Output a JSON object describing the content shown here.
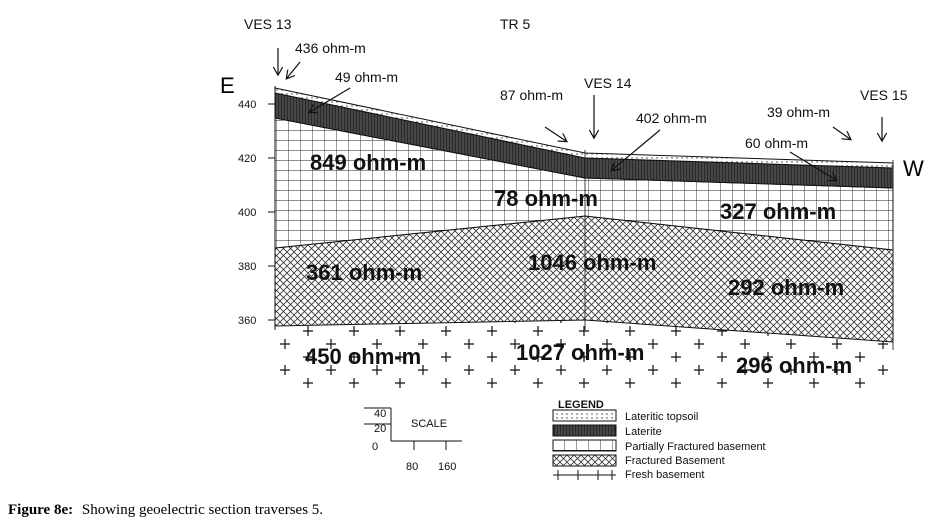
{
  "stations": [
    "VES 13",
    "VES 14",
    "VES 15"
  ],
  "traverse": "TR 5",
  "orientation": {
    "east": "E",
    "west": "W"
  },
  "elevation_ticks": [
    "440",
    "420",
    "400",
    "380",
    "360"
  ],
  "surface_labels": [
    "436 ohm-m",
    "49 ohm-m",
    "87 ohm-m",
    "402 ohm-m",
    "39 ohm-m",
    "60 ohm-m"
  ],
  "layer_labels": [
    "849 ohm-m",
    "78 ohm-m",
    "327 ohm-m",
    "361 ohm-m",
    "1046 ohm-m",
    "292 ohm-m",
    "450 ohm-m",
    "1027 ohm-m",
    "296 ohm-m"
  ],
  "scale": {
    "title": "SCALE",
    "vertical": [
      "40",
      "20",
      "0"
    ],
    "horizontal": [
      "80",
      "160"
    ]
  },
  "legend": {
    "title": "LEGEND",
    "items": [
      "Lateritic topsoil",
      "Laterite",
      "Partially Fractured basement",
      "Fractured Basement",
      "Fresh basement"
    ]
  },
  "caption": {
    "label": "Figure 8e:",
    "text": "Showing geoelectric section traverses 5."
  }
}
